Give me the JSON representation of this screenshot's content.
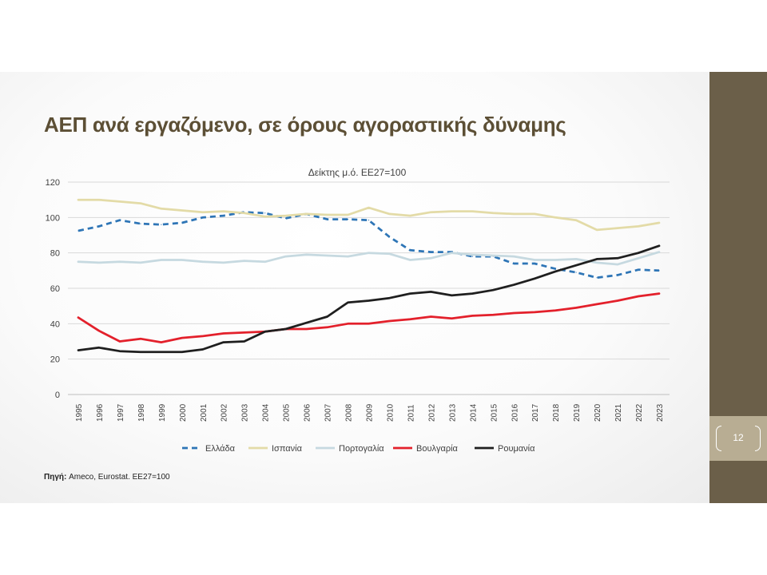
{
  "slide": {
    "title": "ΑΕΠ ανά εργαζόμενο, σε όρους αγοραστικής δύναμης",
    "page_number": "12",
    "source_label": "Πηγή:",
    "source_text": " Ameco, Eurostat. ΕΕ27=100"
  },
  "colors": {
    "title": "#5c4f35",
    "sidebar": "#6b5f49",
    "page_box": "#b8ad93",
    "gridline": "#d9d9d9",
    "axis_text": "#404040"
  },
  "chart_data": {
    "type": "line",
    "title": "Δείκτης μ.ό. ΕΕ27=100",
    "xlabel": "",
    "ylabel": "",
    "ylim": [
      0,
      120
    ],
    "yticks": [
      0,
      20,
      40,
      60,
      80,
      100,
      120
    ],
    "grid": true,
    "legend": "bottom",
    "x": [
      "1995",
      "1996",
      "1997",
      "1998",
      "1999",
      "2000",
      "2001",
      "2002",
      "2003",
      "2004",
      "2005",
      "2006",
      "2007",
      "2008",
      "2009",
      "2010",
      "2011",
      "2012",
      "2013",
      "2014",
      "2015",
      "2016",
      "2017",
      "2018",
      "2019",
      "2020",
      "2021",
      "2022",
      "2023"
    ],
    "series": [
      {
        "name": "Ελλάδα",
        "color": "#2e75b6",
        "dash": true,
        "values": [
          92.5,
          95,
          98.5,
          96.5,
          96,
          97,
          100,
          101,
          103,
          102.5,
          99.5,
          102,
          99,
          99,
          98.5,
          89,
          81.5,
          80.5,
          80.5,
          78,
          78,
          74,
          74,
          71,
          69,
          66,
          67.5,
          70.5,
          70
        ]
      },
      {
        "name": "Ισπανία",
        "color": "#e3dba7",
        "dash": false,
        "values": [
          110,
          110,
          109,
          108,
          105,
          104,
          103,
          103.5,
          102.5,
          100.5,
          101,
          102,
          101.5,
          101.5,
          105.5,
          102,
          101,
          103,
          103.5,
          103.5,
          102.5,
          102,
          102,
          100,
          98.5,
          93,
          94,
          95,
          97
        ]
      },
      {
        "name": "Πορτογαλία",
        "color": "#c6d9e0",
        "dash": false,
        "values": [
          75,
          74.5,
          75,
          74.5,
          76,
          76,
          75,
          74.5,
          75.5,
          75,
          78,
          79,
          78.5,
          78,
          80,
          79.5,
          76,
          77,
          80,
          79,
          78.5,
          78,
          76,
          76,
          76.5,
          74.5,
          73.5,
          77,
          80.5
        ]
      },
      {
        "name": "Βουλγαρία",
        "color": "#e3202b",
        "dash": false,
        "values": [
          43.5,
          36,
          30,
          31.5,
          29.5,
          32,
          33,
          34.5,
          35,
          35.5,
          37,
          37,
          38,
          40,
          40,
          41.5,
          42.5,
          44,
          43,
          44.5,
          45,
          46,
          46.5,
          47.5,
          49,
          51,
          53,
          55.5,
          57
        ]
      },
      {
        "name": "Ρουμανία",
        "color": "#1f1f1f",
        "dash": false,
        "values": [
          25,
          26.5,
          24.5,
          24,
          24,
          24,
          25.5,
          29.5,
          30,
          35.5,
          37,
          40.5,
          44,
          52,
          53,
          54.5,
          57,
          58,
          56,
          57,
          59,
          62,
          65.5,
          69.5,
          73,
          76.5,
          77,
          80,
          84
        ]
      }
    ]
  }
}
